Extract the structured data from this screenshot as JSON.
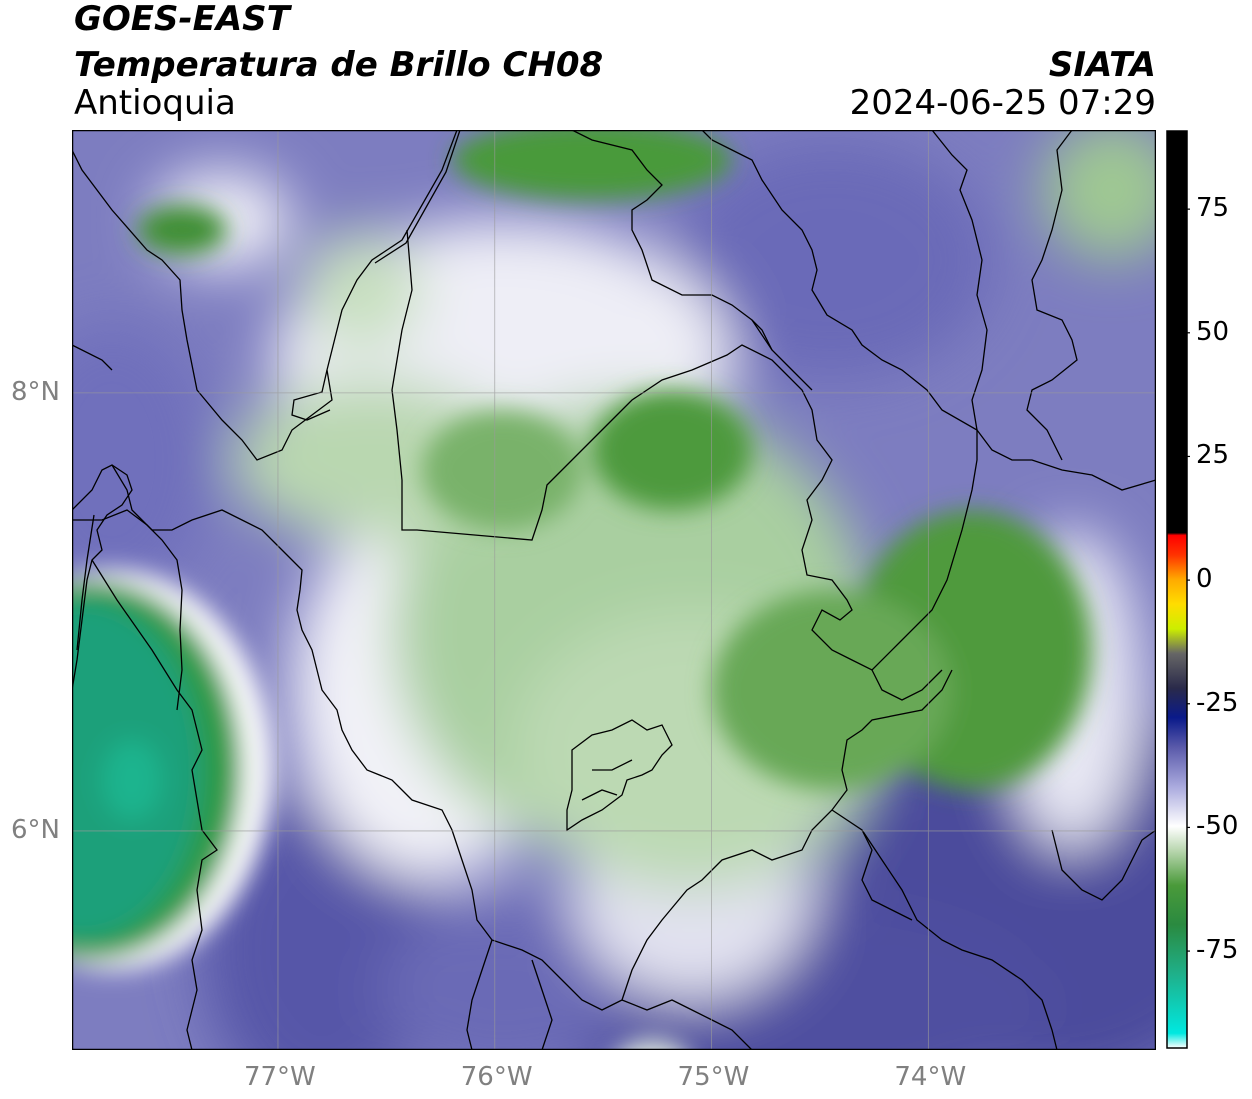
{
  "header": {
    "satellite": "GOES-EAST",
    "product": "Temperatura de Brillo CH08",
    "region": "Antioquia",
    "agency": "SIATA",
    "datetime": "2024-06-25 07:29"
  },
  "map": {
    "lon_range": [
      -77.95,
      -72.95
    ],
    "lat_range": [
      5.0,
      9.2
    ],
    "lon_ticks": [
      {
        "value": -77,
        "label": "77°W"
      },
      {
        "value": -76,
        "label": "76°W"
      },
      {
        "value": -75,
        "label": "75°W"
      },
      {
        "value": -74,
        "label": "74°W"
      }
    ],
    "lat_ticks": [
      {
        "value": 8,
        "label": "8°N"
      },
      {
        "value": 6,
        "label": "6°N"
      }
    ],
    "gridlines": true,
    "grid_color": "#9a9a9a"
  },
  "colorbar": {
    "range": [
      -95,
      91
    ],
    "ticks": [
      {
        "value": 75,
        "label": "75"
      },
      {
        "value": 50,
        "label": "50"
      },
      {
        "value": 25,
        "label": "25"
      },
      {
        "value": 0,
        "label": "0"
      },
      {
        "value": -25,
        "label": "-25"
      },
      {
        "value": -50,
        "label": "-50"
      },
      {
        "value": -75,
        "label": "-75"
      }
    ],
    "stops": [
      {
        "value": -95,
        "color": "#ffffff"
      },
      {
        "value": -92,
        "color": "#00e8e0"
      },
      {
        "value": -80,
        "color": "#1fb08a"
      },
      {
        "value": -70,
        "color": "#2a8a40"
      },
      {
        "value": -62,
        "color": "#4a9a3a"
      },
      {
        "value": -55,
        "color": "#b8d6ae"
      },
      {
        "value": -50,
        "color": "#ffffff"
      },
      {
        "value": -42,
        "color": "#aaaade"
      },
      {
        "value": -34,
        "color": "#5a5aaa"
      },
      {
        "value": -28,
        "color": "#0a1a8a"
      },
      {
        "value": -22,
        "color": "#2a2a4a"
      },
      {
        "value": -15,
        "color": "#666666"
      },
      {
        "value": -10,
        "color": "#ccee00"
      },
      {
        "value": -5,
        "color": "#ffdd00"
      },
      {
        "value": 0,
        "color": "#ffaa00"
      },
      {
        "value": 5,
        "color": "#ff3300"
      },
      {
        "value": 9,
        "color": "#ff0000"
      },
      {
        "value": 9.5,
        "color": "#000000"
      },
      {
        "value": 91,
        "color": "#000000"
      }
    ]
  }
}
